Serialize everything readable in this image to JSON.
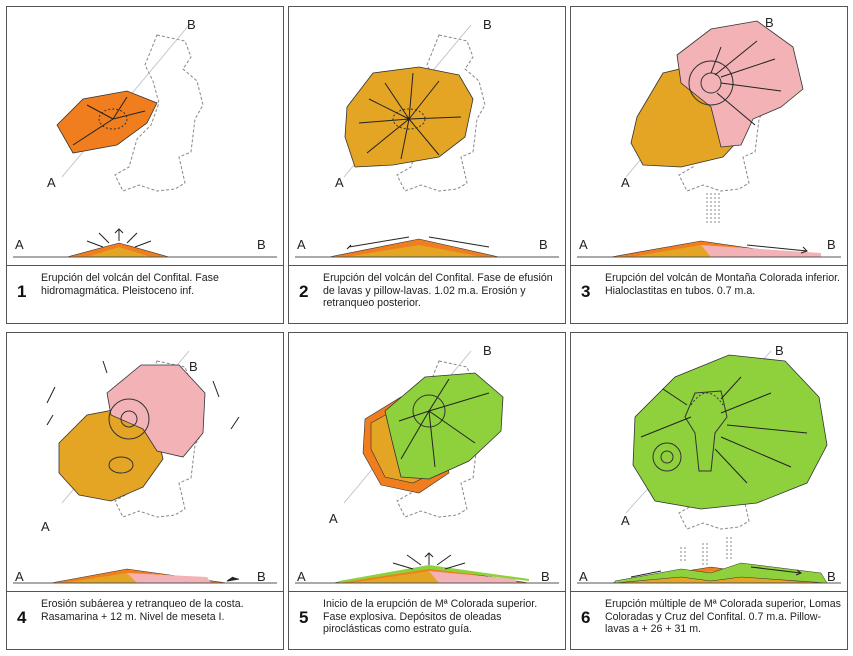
{
  "labels": {
    "a": "A",
    "b": "B"
  },
  "colors": {
    "orange": "#f07d1e",
    "amber": "#e4a424",
    "pink": "#f2b2b6",
    "green": "#8fd13c",
    "outline": "#333333"
  },
  "panels": [
    {
      "number": "1",
      "caption": "Erupción  del volcán del Confital. Fase hidromagmática. Pleistoceno inf."
    },
    {
      "number": "2",
      "caption": "Erupción  del volcán del Confital. Fase de efusión de lavas y pillow-lavas. 1.02 m.a. Erosión y retranqueo posterior."
    },
    {
      "number": "3",
      "caption": "Erupción  del  volcán de Montaña Colorada inferior. Hialoclastitas en tubos. 0.7 m.a."
    },
    {
      "number": "4",
      "caption": "Erosión subáerea y retranqueo de la costa. Rasamarina + 12 m. Nivel de meseta I."
    },
    {
      "number": "5",
      "caption": "Inicio de la erupción de Mª Colorada superior. Fase explosiva. Depósitos de oleadas piroclásticas como estrato guía."
    },
    {
      "number": "6",
      "caption": "Erupción múltiple de Mª Colorada superior, Lomas Coloradas y Cruz del Confital. 0.7 m.a. Pillow-lavas a + 26 + 31 m."
    }
  ]
}
